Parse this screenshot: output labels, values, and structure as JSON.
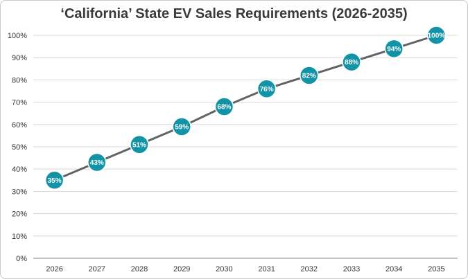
{
  "chart_data": {
    "type": "line",
    "title": "‘California’ State EV Sales Requirements (2026-2035)",
    "xlabel": "",
    "ylabel": "",
    "categories": [
      "2026",
      "2027",
      "2028",
      "2029",
      "2030",
      "2031",
      "2032",
      "2033",
      "2034",
      "2035"
    ],
    "series": [
      {
        "values": [
          35,
          43,
          51,
          59,
          68,
          76,
          82,
          88,
          94,
          100
        ],
        "data_labels": [
          "35%",
          "43%",
          "51%",
          "59%",
          "68%",
          "76%",
          "82%",
          "88%",
          "94%",
          "100%"
        ]
      }
    ],
    "ylim": [
      0,
      100
    ],
    "yticks": [
      0,
      10,
      20,
      30,
      40,
      50,
      60,
      70,
      80,
      90,
      100
    ],
    "ytick_labels": [
      "0%",
      "10%",
      "20%",
      "30%",
      "40%",
      "50%",
      "60%",
      "70%",
      "80%",
      "90%",
      "100%"
    ],
    "grid": true,
    "colors": {
      "line": "#5f6468",
      "marker": "#1393a6",
      "marker_border": "#ffffff",
      "grid": "#d9d9d9",
      "axis": "#888888"
    }
  }
}
